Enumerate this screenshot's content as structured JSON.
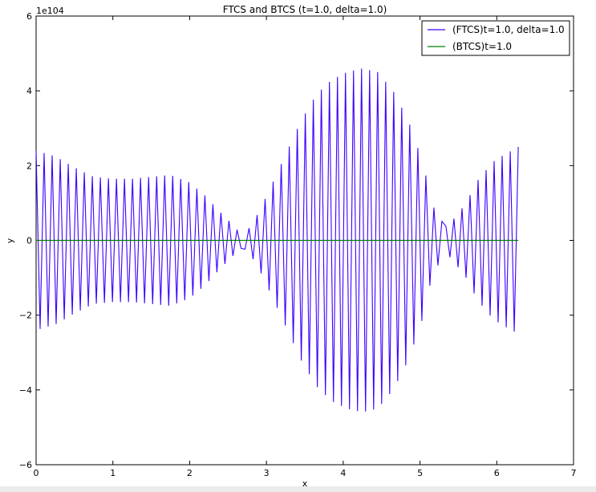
{
  "chart_data": {
    "type": "line",
    "title": "FTCS and BTCS (t=1.0, delta=1.0)",
    "xlabel": "x",
    "ylabel": "y",
    "offset_label": "1e104",
    "xlim": [
      0,
      7
    ],
    "ylim": [
      -6,
      6
    ],
    "xticks": [
      0,
      1,
      2,
      3,
      4,
      5,
      6,
      7
    ],
    "yticks": [
      -6,
      -4,
      -2,
      0,
      2,
      4,
      6
    ],
    "xtick_labels": [
      "0",
      "1",
      "2",
      "3",
      "4",
      "5",
      "6",
      "7"
    ],
    "ytick_labels": [
      "−6",
      "−4",
      "−2",
      "0",
      "2",
      "4",
      "6"
    ],
    "grid": false,
    "legend_position": "top-right",
    "series": [
      {
        "name": "(FTCS)t=1.0, delta=1.0",
        "color": "#3d00ff",
        "amplitude_envelope": [
          [
            0.0,
            2.4
          ],
          [
            0.25,
            2.25
          ],
          [
            0.5,
            1.95
          ],
          [
            0.75,
            1.7
          ],
          [
            1.0,
            1.65
          ],
          [
            1.25,
            1.65
          ],
          [
            1.5,
            1.7
          ],
          [
            1.75,
            1.75
          ],
          [
            2.0,
            1.55
          ],
          [
            2.2,
            1.2
          ],
          [
            2.4,
            0.75
          ],
          [
            2.55,
            0.45
          ],
          [
            2.65,
            0.2
          ],
          [
            2.75,
            0.25
          ],
          [
            2.9,
            0.75
          ],
          [
            3.05,
            1.4
          ],
          [
            3.25,
            2.3
          ],
          [
            3.45,
            3.2
          ],
          [
            3.65,
            3.9
          ],
          [
            3.85,
            4.3
          ],
          [
            4.05,
            4.5
          ],
          [
            4.25,
            4.6
          ],
          [
            4.45,
            4.5
          ],
          [
            4.65,
            4.0
          ],
          [
            4.85,
            3.2
          ],
          [
            5.05,
            2.0
          ],
          [
            5.15,
            1.0
          ],
          [
            5.25,
            0.6
          ],
          [
            5.35,
            0.35
          ],
          [
            5.45,
            0.6
          ],
          [
            5.6,
            1.0
          ],
          [
            5.75,
            1.6
          ],
          [
            5.95,
            2.1
          ],
          [
            6.1,
            2.3
          ],
          [
            6.28,
            2.5
          ]
        ]
      },
      {
        "name": "(BTCS)t=1.0",
        "color": "#008000",
        "x": [
          0.0,
          6.28
        ],
        "y": [
          0,
          0
        ]
      }
    ]
  }
}
